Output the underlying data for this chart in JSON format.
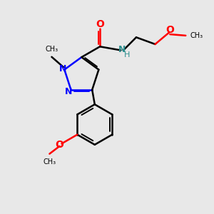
{
  "background_color": "#e8e8e8",
  "bond_color": "#000000",
  "nitrogen_color": "#0000ff",
  "oxygen_color": "#ff0000",
  "nh_color": "#2f8f8f",
  "figsize": [
    3.0,
    3.0
  ],
  "dpi": 100,
  "xlim": [
    0,
    10
  ],
  "ylim": [
    0,
    10
  ],
  "lw": 1.8,
  "lw_inner": 1.4
}
